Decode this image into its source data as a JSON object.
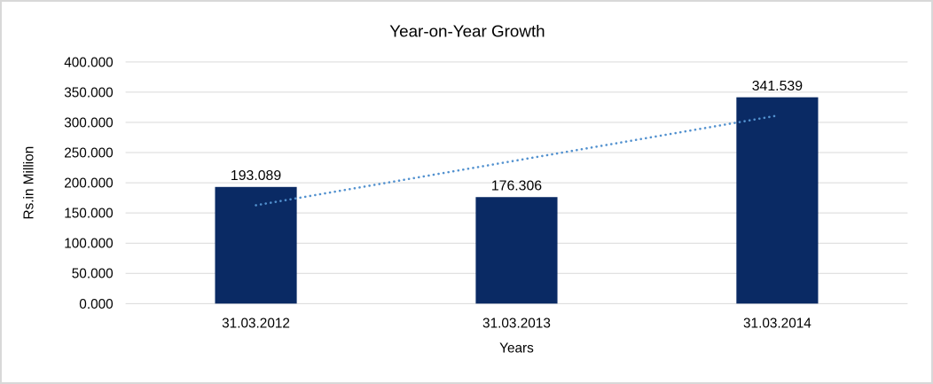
{
  "chart_data": {
    "type": "bar",
    "title": "Year-on-Year Growth",
    "xlabel": "Years",
    "ylabel": "Rs.in Million",
    "categories": [
      "31.03.2012",
      "31.03.2013",
      "31.03.2014"
    ],
    "values": [
      193.089,
      176.306,
      341.539
    ],
    "data_labels": [
      "193.089",
      "176.306",
      "341.539"
    ],
    "y_ticks": [
      0,
      50,
      100,
      150,
      200,
      250,
      300,
      350,
      400
    ],
    "y_tick_labels": [
      "0.000",
      "50.000",
      "100.000",
      "150.000",
      "200.000",
      "250.000",
      "300.000",
      "350.000",
      "400.000"
    ],
    "ylim": [
      0,
      400
    ],
    "grid": true,
    "legend": "none",
    "bar_color": "#0a2a64",
    "gridline_color": "#d9d9d9",
    "trendline": {
      "type": "linear",
      "style": "dotted",
      "color": "#5291cf",
      "values": [
        162.753,
        236.978,
        311.203
      ]
    }
  }
}
